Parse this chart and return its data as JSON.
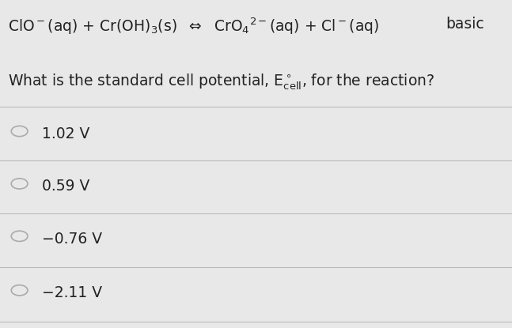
{
  "background_color": "#e8e8e8",
  "tag": "basic",
  "options": [
    "1.02 V",
    "0.59 V",
    "−0.76 V",
    "−2.11 V"
  ],
  "divider_color": "#bbbbbb",
  "text_color": "#222222",
  "circle_color": "#aaaaaa",
  "font_size_title": 13.5,
  "font_size_question": 13.5,
  "font_size_options": 13.5
}
